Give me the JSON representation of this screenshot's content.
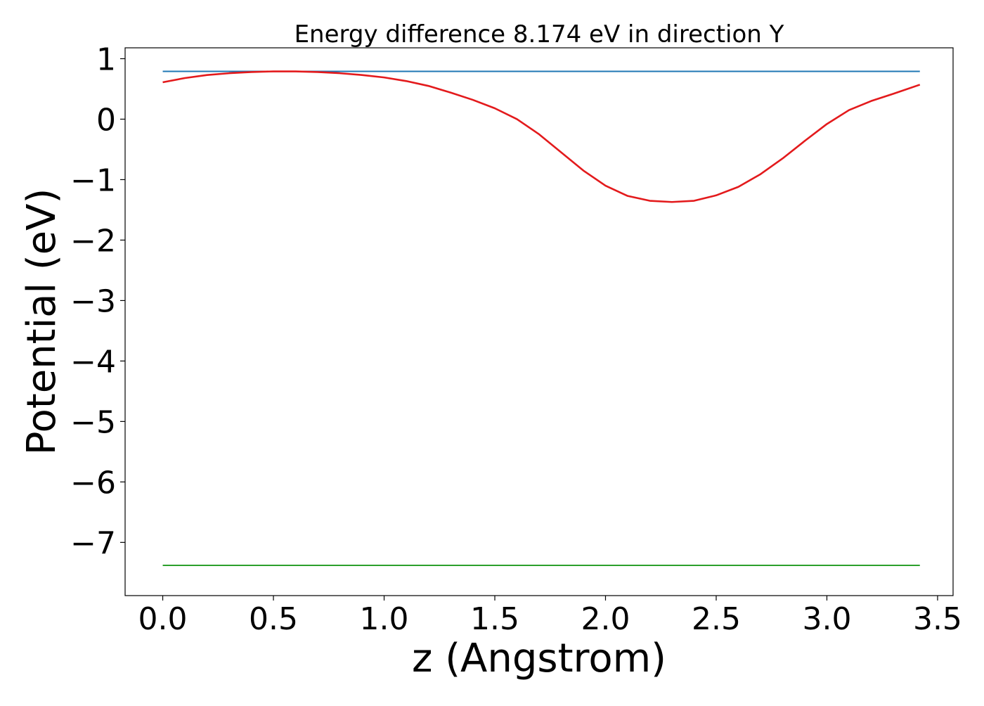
{
  "chart_data": {
    "type": "line",
    "title": "Energy difference 8.174 eV in direction Y",
    "xlabel": "z (Angstrom)",
    "ylabel": "Potential (eV)",
    "xlim": [
      -0.17,
      3.57
    ],
    "ylim": [
      -7.88,
      1.18
    ],
    "xticks": [
      0.0,
      0.5,
      1.0,
      1.5,
      2.0,
      2.5,
      3.0,
      3.5
    ],
    "xtick_labels": [
      "0.0",
      "0.5",
      "1.0",
      "1.5",
      "2.0",
      "2.5",
      "3.0",
      "3.5"
    ],
    "yticks": [
      1,
      0,
      -1,
      -2,
      -3,
      -4,
      -5,
      -6,
      -7
    ],
    "ytick_labels": [
      "1",
      "0",
      "−1",
      "−2",
      "−3",
      "−4",
      "−5",
      "−6",
      "−7"
    ],
    "grid": false,
    "legend": "none",
    "series": [
      {
        "color": "#1f77b4",
        "x": [
          0.0,
          3.42
        ],
        "y": [
          0.79,
          0.79
        ]
      },
      {
        "color": "#2ca02c",
        "x": [
          0.0,
          3.42
        ],
        "y": [
          -7.38,
          -7.38
        ]
      },
      {
        "color": "#e31a1c",
        "x": [
          0.0,
          0.1,
          0.2,
          0.3,
          0.4,
          0.5,
          0.6,
          0.7,
          0.8,
          0.9,
          1.0,
          1.1,
          1.2,
          1.3,
          1.4,
          1.5,
          1.6,
          1.7,
          1.8,
          1.9,
          2.0,
          2.1,
          2.2,
          2.3,
          2.4,
          2.5,
          2.6,
          2.7,
          2.8,
          2.9,
          3.0,
          3.1,
          3.2,
          3.3,
          3.42
        ],
        "y": [
          0.61,
          0.68,
          0.73,
          0.76,
          0.78,
          0.79,
          0.79,
          0.78,
          0.76,
          0.73,
          0.69,
          0.63,
          0.55,
          0.44,
          0.32,
          0.18,
          0.0,
          -0.25,
          -0.55,
          -0.85,
          -1.1,
          -1.27,
          -1.35,
          -1.37,
          -1.35,
          -1.26,
          -1.12,
          -0.91,
          -0.65,
          -0.36,
          -0.08,
          0.15,
          0.3,
          0.42,
          0.57
        ]
      }
    ]
  }
}
